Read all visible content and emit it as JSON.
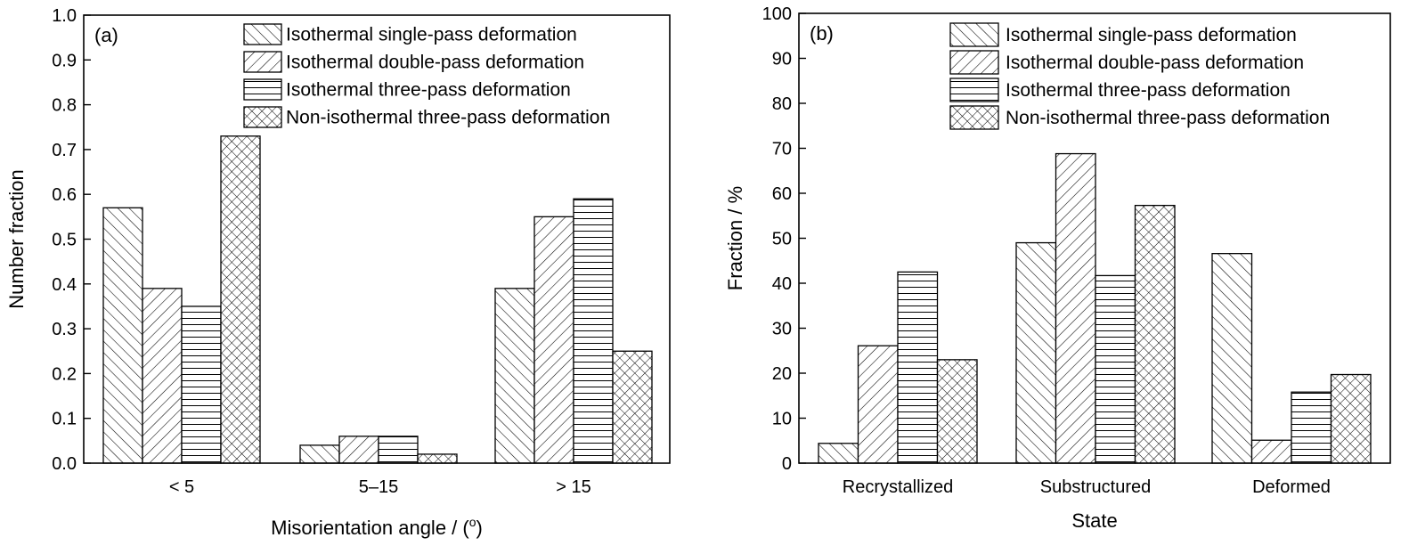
{
  "chart_data": [
    {
      "type": "bar",
      "panel_label": "(a)",
      "xlabel": "Misorientation angle / (°)",
      "xlabel_main": "Misorientation angle / (",
      "xlabel_sup": "o",
      "xlabel_close": ")",
      "ylabel": "Number fraction",
      "ylim": [
        0,
        1.0
      ],
      "yticks": [
        "0.0",
        "0.1",
        "0.2",
        "0.3",
        "0.4",
        "0.5",
        "0.6",
        "0.7",
        "0.8",
        "0.9",
        "1.0"
      ],
      "categories": [
        "< 5",
        "5–15",
        "> 15"
      ],
      "legend_position": "top-right",
      "grid": false,
      "series": [
        {
          "name": "Isothermal single-pass deformation",
          "pattern": "diag-up",
          "values": [
            0.57,
            0.04,
            0.39
          ]
        },
        {
          "name": "Isothermal double-pass deformation",
          "pattern": "diag-down",
          "values": [
            0.39,
            0.06,
            0.55
          ]
        },
        {
          "name": "Isothermal three-pass deformation",
          "pattern": "horizontal",
          "values": [
            0.35,
            0.06,
            0.59
          ]
        },
        {
          "name": "Non-isothermal three-pass deformation",
          "pattern": "crosshatch",
          "values": [
            0.73,
            0.02,
            0.25
          ]
        }
      ]
    },
    {
      "type": "bar",
      "panel_label": "(b)",
      "xlabel": "State",
      "ylabel": "Fraction / %",
      "ylim": [
        0,
        100
      ],
      "yticks": [
        "0",
        "10",
        "20",
        "30",
        "40",
        "50",
        "60",
        "70",
        "80",
        "90",
        "100"
      ],
      "categories": [
        "Recrystallized",
        "Substructured",
        "Deformed"
      ],
      "legend_position": "top-right",
      "grid": false,
      "series": [
        {
          "name": "Isothermal single-pass deformation",
          "pattern": "diag-up",
          "values": [
            4.4,
            49.0,
            46.6
          ]
        },
        {
          "name": "Isothermal double-pass deformation",
          "pattern": "diag-down",
          "values": [
            26.1,
            68.8,
            5.1
          ]
        },
        {
          "name": "Isothermal three-pass deformation",
          "pattern": "horizontal",
          "values": [
            42.5,
            41.7,
            15.8
          ]
        },
        {
          "name": "Non-isothermal three-pass deformation",
          "pattern": "crosshatch",
          "values": [
            23.0,
            57.3,
            19.7
          ]
        }
      ]
    }
  ]
}
